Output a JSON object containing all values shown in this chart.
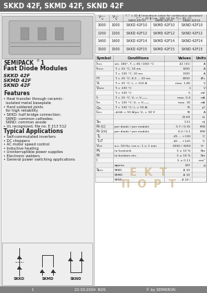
{
  "title": "SKKD 42F, SKMD 42F, SKND 42F",
  "title_bg": "#636363",
  "title_color": "#ffffff",
  "footer_bg": "#808080",
  "footer_text": "1                                    22-03-2004  NOS                                    © by SEMIKRON",
  "footer_color": "#ffffff",
  "semipack_label": "SEMIPACK® 1",
  "product_type": "Fast Diode Modules",
  "models": [
    "SKKD 42F",
    "SKMD 42F",
    "SKND 42F"
  ],
  "features_title": "Features",
  "features": [
    "Heat transfer through ceramic-isolated metal baseplate",
    "Hard soldered joints for high reliability",
    "SKKD: half bridge connection; SKMD: common cathodes; SKND: common anode",
    "UL recognized, file no. E 213 512"
  ],
  "applications_title": "Typical Applications",
  "applications": [
    "Self-commutated inverters",
    "DC choppers",
    "AC motor speed control",
    "Inductive heating",
    "Uninterruptible power supplies",
    "Electronic welders",
    "General power switching applications"
  ],
  "table1_rows": [
    [
      "1000",
      "1000",
      "SKKD 42F10",
      "SKMD 42F10",
      "SKND 42F10"
    ],
    [
      "1200",
      "1200",
      "SKKD 42F12",
      "SKMD 42F12",
      "SKND 42F12"
    ],
    [
      "1400",
      "1400",
      "SKKD 42F14",
      "SKMD 42F14",
      "SKND 42F14"
    ],
    [
      "1500",
      "1500",
      "SKKD 42F15",
      "SKMD 42F15",
      "SKND 42F15"
    ]
  ],
  "symbol_rows": [
    [
      "Iₘₓₓ",
      "sin. 180°, Tⱼ = 85 (100) °C",
      "42 (31)",
      "A"
    ],
    [
      "Iₘₓₓₛ",
      "Tⱼ = 25 °C; 10 ms",
      "1200",
      "A"
    ],
    [
      "",
      "Tⱼ = 130 °C; 10 ms",
      "1100",
      "A"
    ],
    [
      "i²t",
      "Tⱼ = 25 °C; 8.3 ... 10 ms",
      "6000",
      "A²s"
    ],
    [
      "Vₑ",
      "Tⱼ = 25 °C; Iₑ = 150 A",
      "max. 1.85",
      "V"
    ],
    [
      "Vₜₐₘₓ",
      "Tⱼ = 130 °C",
      "1",
      "V"
    ],
    [
      "",
      "Tⱼ = 130 °C",
      "5",
      "mV"
    ],
    [
      "Iₙ",
      "Tⱼ = 25 °C; Vₙ = Vₓₓₘₓ",
      "max. 0.4",
      "mA"
    ],
    [
      "Iₙₘ",
      "Tⱼ = 130 °C; Vₙ = Vₓₓₘₓ",
      "max. 30",
      "mA"
    ],
    [
      "Qₙₙ",
      "Tⱼ = 130 °C; Iₑ = 50 A;",
      "75",
      "μC"
    ],
    [
      "Iₙₘₓ",
      "-di/dt = 50 A/μs; Vₙ = 30 V",
      "70",
      "A"
    ],
    [
      "",
      "",
      "21.60",
      "ns"
    ],
    [
      "Sₙₙ",
      "",
      "1.12",
      "mJ"
    ],
    [
      "Rₗₗ (c)",
      "per diode / per module",
      "0.7 / 0.35",
      "K/W"
    ],
    [
      "Rₗₗ (cs)",
      "per diode / per module",
      "0.2 / 0.1",
      "K/W"
    ],
    [
      "Tⱼⱼ",
      "",
      "-45 ... +130",
      "°C"
    ],
    [
      "Tₛₜⵢ",
      "",
      "-40 ... +125",
      "°C"
    ],
    [
      "Vᴵₛₒₗ",
      "a.c. 50 Hz; r.m.s.; 1 s; 1 mm",
      "3000 / 3000",
      "V~"
    ],
    [
      "Mₛ",
      "to heatsink",
      "3 ± 10 %",
      "Nm"
    ],
    [
      "Mₜ",
      "to busbars etc.",
      "3 ± 10 %",
      "Nm"
    ],
    [
      "l",
      "",
      "5 ± 0.11",
      "mm²"
    ],
    [
      "",
      "approx.",
      "120",
      "g"
    ],
    [
      "Sₘₓₓ",
      "SKKD",
      "-8.10",
      ""
    ],
    [
      "",
      "SKMD",
      "-8.10",
      ""
    ],
    [
      "",
      "SKND",
      "-8.10 /",
      ""
    ]
  ],
  "watermark_lines": [
    "E  K  T",
    "П  O  P  T"
  ],
  "watermark_color": "#c8a870",
  "bg_color": "#ffffff",
  "border_color": "#999999",
  "table_line_color": "#aaaaaa",
  "dark_text": "#222222",
  "left_panel_bg": "#eeeeee",
  "diag_bg": "#eeeeee"
}
